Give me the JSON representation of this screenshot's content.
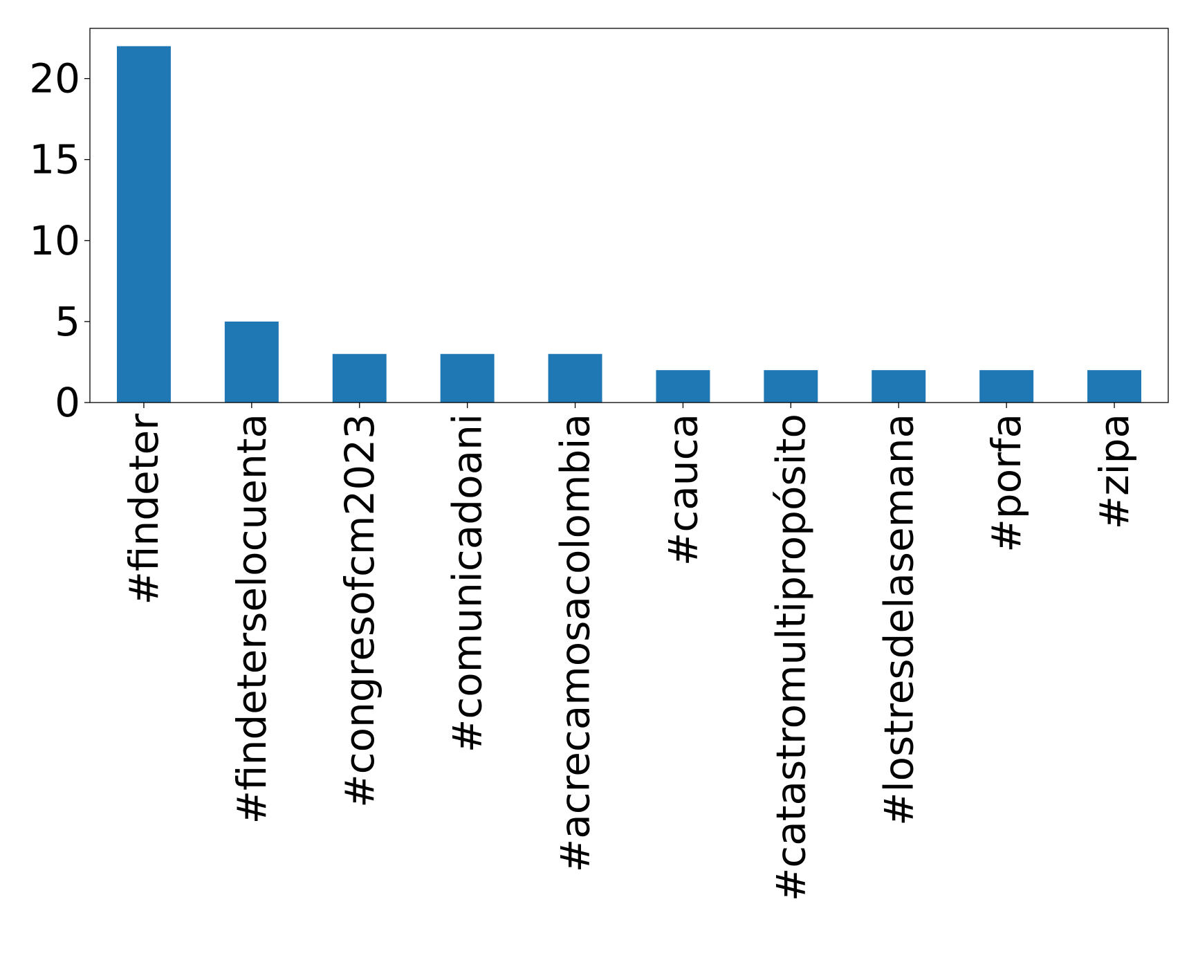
{
  "chart_data": {
    "type": "bar",
    "categories": [
      "#findeter",
      "#findeterselocuenta",
      "#congresofcm2023",
      "#comunicadoani",
      "#acrecamosacolombia",
      "#cauca",
      "#catastromultipropósito",
      "#lostresdelasemana",
      "#porfa",
      "#zipa"
    ],
    "values": [
      22,
      5,
      3,
      3,
      3,
      2,
      2,
      2,
      2,
      2
    ],
    "yticks": [
      "0",
      "5",
      "10",
      "15",
      "20"
    ],
    "ylim": [
      0,
      23.1
    ],
    "title": "",
    "xlabel": "",
    "ylabel": "",
    "grid": false,
    "bar_color": "#1f77b4"
  }
}
